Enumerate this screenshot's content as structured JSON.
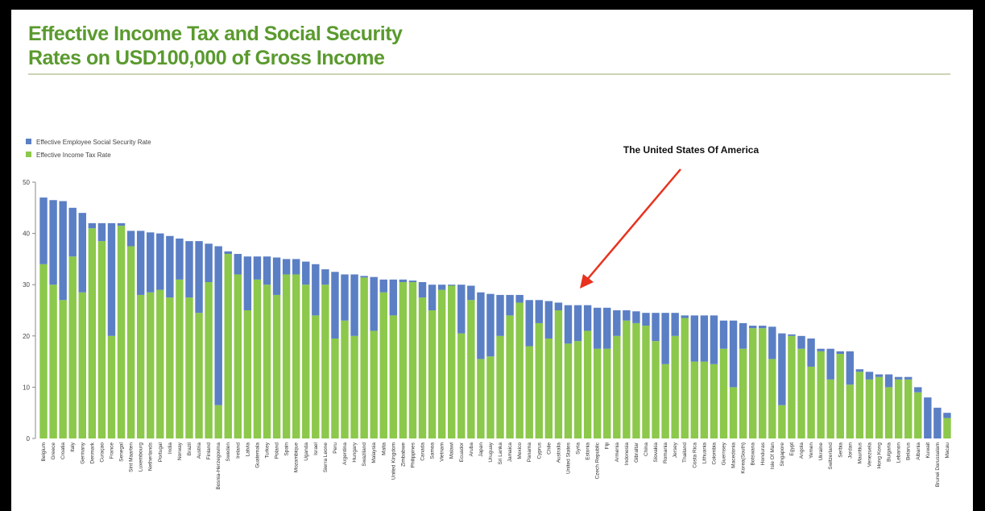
{
  "chart_data": {
    "type": "stacked-bar",
    "title": [
      "Effective Income Tax and Social Security",
      "Rates on USD100,000 of Gross Income"
    ],
    "annotation": "The United States Of America",
    "categories": [
      "Belgium",
      "Greece",
      "Croatia",
      "Italy",
      "Germany",
      "Denmark",
      "Curaçao",
      "France",
      "Senegal",
      "Sint Maarten",
      "Luxembourg",
      "Netherlands",
      "Portugal",
      "India",
      "Norway",
      "Brazil",
      "Austria",
      "Finland",
      "Bosnia-Herzegovina",
      "Sweden",
      "Ireland",
      "Latvia",
      "Guatemala",
      "Turkey",
      "Poland",
      "Spain",
      "Mozambique",
      "Uganda",
      "Israel",
      "Sierra Leone",
      "Peru",
      "Argentina",
      "Hungary",
      "Swaziland",
      "Malaysia",
      "Malta",
      "United Kingdom",
      "Zimbabwe",
      "Philippines",
      "Canada",
      "Samoa",
      "Vietnam",
      "Malawi",
      "Ecuador",
      "Aruba",
      "Japan",
      "Uruguay",
      "Sri Lanka",
      "Jamaica",
      "Mexico",
      "Panama",
      "Cyprus",
      "Chile",
      "Australia",
      "United States",
      "Syria",
      "Estonia",
      "Czech Republic",
      "Fiji",
      "Armenia",
      "Indonesia",
      "Gibraltar",
      "China",
      "Slovakia",
      "Romania",
      "Jersey",
      "Thailand",
      "Costa Rica",
      "Lithuania",
      "Colombia",
      "Guernsey",
      "Macedonia",
      "Korea(South)",
      "Botswana",
      "Honduras",
      "Isle Of Man",
      "Singapore",
      "Egypt",
      "Angola",
      "Yemen",
      "Ukraine",
      "Switzerland",
      "Serbia",
      "Jordan",
      "Mauritius",
      "Venezuela",
      "Hong Kong",
      "Bulgaria",
      "Lebanon",
      "Belarus",
      "Albania",
      "Kuwait",
      "Brunei Darussalam",
      "Macau"
    ],
    "series": [
      {
        "name": "Effective Employee Social Security Rate",
        "color": "#5b7fc4",
        "values": [
          13,
          16.5,
          19.3,
          9.5,
          15.5,
          1,
          3.5,
          22,
          0.5,
          3,
          12.5,
          11.7,
          11,
          12,
          8,
          11,
          14,
          7.5,
          31,
          0.5,
          4,
          10.5,
          4.5,
          5.5,
          7.3,
          3,
          3,
          4.5,
          10,
          3,
          13,
          9,
          12,
          0.3,
          10.5,
          2.5,
          7,
          0.5,
          0.3,
          3,
          5,
          1,
          0.2,
          9.5,
          2.8,
          13,
          12.2,
          8,
          4,
          1.5,
          9,
          4.5,
          7.3,
          1.5,
          7.5,
          7,
          5,
          8,
          8,
          5,
          2,
          2.3,
          2.5,
          5.5,
          10,
          4.5,
          0.5,
          9,
          9,
          9.5,
          5.5,
          13,
          5,
          0.5,
          0.5,
          6.3,
          14,
          0.3,
          2.5,
          5.5,
          0.5,
          6,
          0.5,
          6.5,
          0.5,
          1.5,
          0.5,
          2.5,
          0.5,
          0.5,
          1,
          8,
          6,
          1
        ]
      },
      {
        "name": "Effective Income Tax Rate",
        "color": "#8cc84b",
        "values": [
          34,
          30,
          27,
          35.5,
          28.5,
          41,
          38.5,
          20,
          41.5,
          37.5,
          28,
          28.5,
          29,
          27.5,
          31,
          27.5,
          24.5,
          30.5,
          6.5,
          36,
          32,
          25,
          31,
          30,
          28,
          32,
          32,
          30,
          24,
          30,
          19.5,
          23,
          20,
          31.4,
          21,
          28.5,
          24,
          30.5,
          30.5,
          27.5,
          25,
          29,
          29.8,
          20.5,
          27,
          15.5,
          16,
          20,
          24,
          26.5,
          18,
          22.5,
          19.5,
          25,
          18.5,
          19,
          21,
          17.5,
          17.5,
          20,
          23,
          22.5,
          22,
          19,
          14.5,
          20,
          23.5,
          15,
          15,
          14.5,
          17.5,
          10,
          17.5,
          21.5,
          21.5,
          15.5,
          6.5,
          20,
          17.5,
          14,
          17,
          11.5,
          16.5,
          10.5,
          13,
          11.5,
          12,
          10,
          11.5,
          11.5,
          9,
          0,
          0,
          4
        ]
      }
    ],
    "ylim": [
      0,
      50
    ],
    "yticks": [
      0,
      10,
      20,
      30,
      40,
      50
    ]
  }
}
